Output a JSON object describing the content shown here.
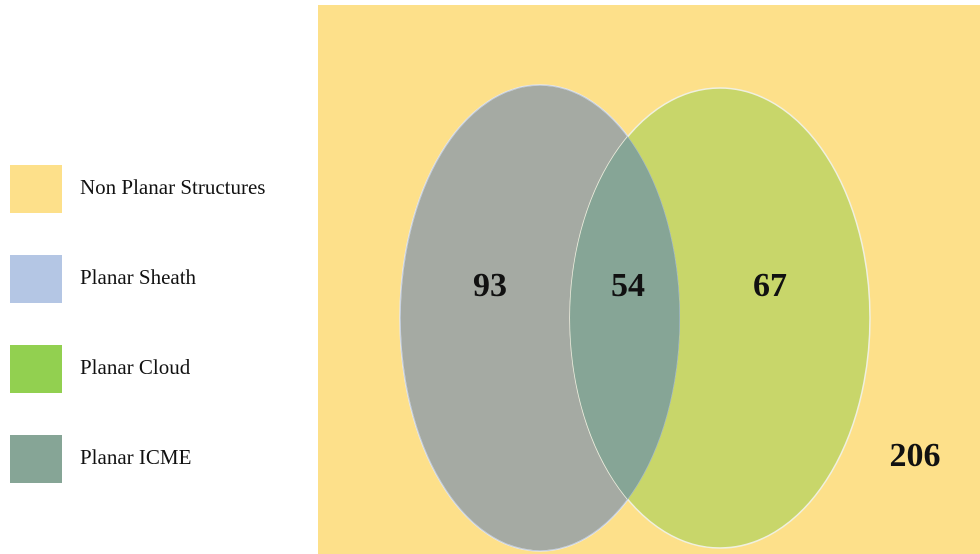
{
  "legend": [
    {
      "label": "Non Planar Structures",
      "color": "#fde08a"
    },
    {
      "label": "Planar Sheath",
      "color": "#b4c6e4"
    },
    {
      "label": "Planar Cloud",
      "color": "#92d050"
    },
    {
      "label": "Planar ICME",
      "color": "#86a596"
    }
  ],
  "regions": {
    "sheath_only": "93",
    "both": "54",
    "cloud_only": "67",
    "outside": "206"
  }
}
